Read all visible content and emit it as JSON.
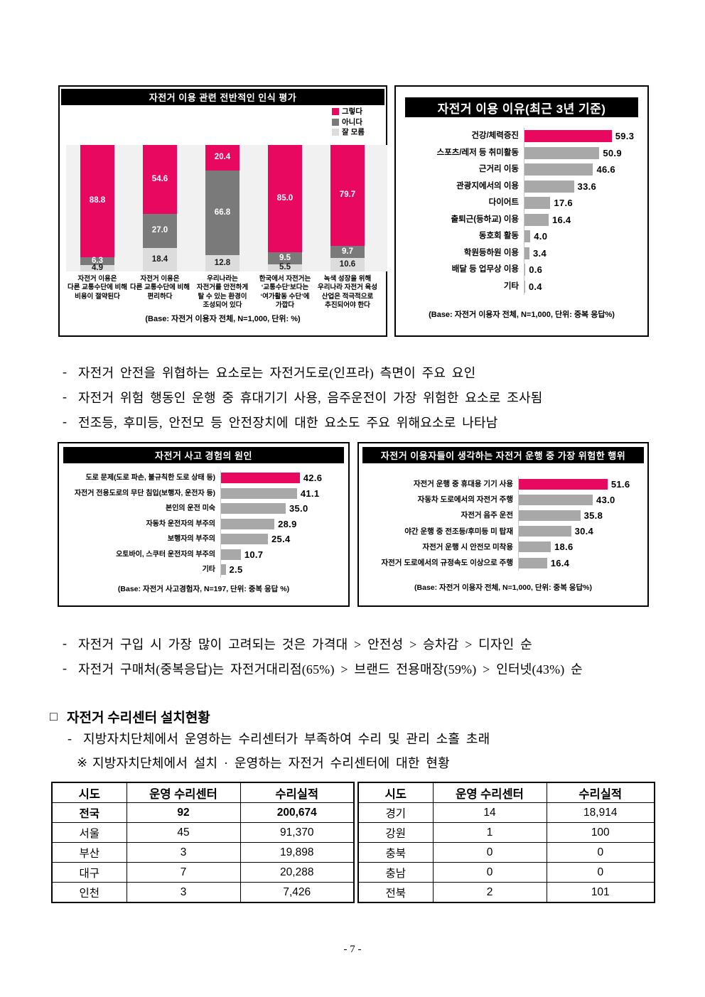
{
  "page": {
    "number": "- 7 -"
  },
  "colors": {
    "accent": "#e8085f",
    "bar_gray": "#a8a8a8",
    "dark_gray": "#7a7a7a",
    "light_gray": "#dcdcdc",
    "plot_bg": "#f1f1f1"
  },
  "chart_data": [
    {
      "id": "perception",
      "type": "stacked-bar",
      "title": "자전거 이용 관련 전반적인 인식 평가",
      "base": "(Base: 자전거 이용자 전체, N=1,000, 단위: %)",
      "legend": [
        "그렇다",
        "아니다",
        "잘 모름"
      ],
      "ylim": [
        0,
        100
      ],
      "categories": [
        "자전거 이용은\n다른 교통수단에 비해\n비용이 절약된다",
        "자전거 이용은\n다른 교통수단에 비해\n편리하다",
        "우리나라는\n자전거를 안전하게\n탈 수 있는 환경이\n조성되어 있다",
        "한국에서 자전거는\n‘교통수단’보다는\n‘여가활동 수단’에\n가깝다",
        "녹색 성장을 위해\n우리나라 자전거 육성\n산업은 적극적으로\n추진되어야 한다"
      ],
      "series": [
        {
          "name": "그렇다",
          "values": [
            88.8,
            54.6,
            20.4,
            85.0,
            79.7
          ]
        },
        {
          "name": "아니다",
          "values": [
            6.3,
            27.0,
            66.8,
            9.5,
            9.7
          ]
        },
        {
          "name": "잘 모름",
          "values": [
            4.9,
            18.4,
            12.8,
            5.5,
            10.6
          ]
        }
      ]
    },
    {
      "id": "reasons",
      "type": "bar",
      "orientation": "horizontal",
      "title": "자전거 이용 이유(최근 3년 기준)",
      "base": "(Base: 자전거 이용자 전체, N=1,000, 단위: 중복 응답%)",
      "highlight_index": 0,
      "categories": [
        "건강/체력증진",
        "스포츠/레저 등 취미활동",
        "근거리 이동",
        "관광지에서의 이용",
        "다이어트",
        "출퇴근(등하교) 이용",
        "동호회 활동",
        "학원등하원 이용",
        "배달 등 업무상 이용",
        "기타"
      ],
      "values": [
        59.3,
        50.9,
        46.6,
        33.6,
        17.6,
        16.4,
        4.0,
        3.4,
        0.6,
        0.4
      ]
    },
    {
      "id": "accident",
      "type": "bar",
      "orientation": "horizontal",
      "title": "자전거 사고 경험의 원인",
      "base": "(Base: 자전거 사고경험자, N=197, 단위: 중복 응답 %)",
      "highlight_index": 0,
      "categories": [
        "도로 문제(도로 파손, 불규칙한 도로 상태 등)",
        "자전거 전용도로의 무단 침입(보행자, 운전자 등)",
        "본인의 운전 미숙",
        "자동차 운전자의 부주의",
        "보행자의 부주의",
        "오토바이, 스쿠터 운전자의 부주의",
        "기타"
      ],
      "values": [
        42.6,
        41.1,
        35.0,
        28.9,
        25.4,
        10.7,
        2.5
      ]
    },
    {
      "id": "danger",
      "type": "bar",
      "orientation": "horizontal",
      "title": "자전거 이용자들이 생각하는 자전거 운행 중 가장 위험한 행위",
      "base": "(Base: 자전거 이용자 전체, N=1,000, 단위: 중복 응답%)",
      "highlight_index": 0,
      "categories": [
        "자전거 운행 중 휴대용 기기 사용",
        "자동차 도로에서의 자전거 주행",
        "자전거 음주 운전",
        "야간 운행 중 전조등/후미등 미 탑재",
        "자전거 운행 시 안전모 미착용",
        "자전거 도로에서의 규정속도 이상으로 주행"
      ],
      "values": [
        51.6,
        43.0,
        35.8,
        30.4,
        18.6,
        16.4
      ]
    }
  ],
  "bullets_top": [
    {
      "marker": "-",
      "text": "자전거 안전을 위협하는 요소로는 자전거도로(인프라) 측면이 주요 요인"
    },
    {
      "marker": "-",
      "text": "자전거 위험 행동인 운행 중 휴대기기 사용, 음주운전이 가장 위험한 요소로 조사됨"
    },
    {
      "marker": "-",
      "text": "전조등, 후미등, 안전모 등 안전장치에 대한 요소도 주요 위해요소로 나타남"
    }
  ],
  "bullets_mid": [
    {
      "marker": "-",
      "text": "자전거 구입 시 가장 많이 고려되는 것은 가격대 > 안전성 > 승차감 > 디자인 순"
    },
    {
      "marker": "-",
      "text": "자전거 구매처(중복응답)는 자전거대리점(65%) > 브랜드 전용매장(59%) > 인터넷(43%) 순"
    }
  ],
  "section": {
    "marker": "□",
    "title": "자전거 수리센터 설치현황"
  },
  "section_bullets": [
    {
      "marker": "-",
      "text": "지방자치단체에서 운영하는 수리센터가 부족하여 수리 및 관리 소홀 초래"
    },
    {
      "marker": "※",
      "text": "지방자치단체에서 설치 · 운영하는 자전거 수리센터에 대한 현황"
    }
  ],
  "repair_table": {
    "headers": [
      "시도",
      "운영 수리센터",
      "수리실적"
    ],
    "left_rows": [
      [
        "전국",
        "92",
        "200,674"
      ],
      [
        "서울",
        "45",
        "91,370"
      ],
      [
        "부산",
        "3",
        "19,898"
      ],
      [
        "대구",
        "7",
        "20,288"
      ],
      [
        "인천",
        "3",
        "7,426"
      ]
    ],
    "right_rows": [
      [
        "경기",
        "14",
        "18,914"
      ],
      [
        "강원",
        "1",
        "100"
      ],
      [
        "충북",
        "0",
        "0"
      ],
      [
        "충남",
        "0",
        "0"
      ],
      [
        "전북",
        "2",
        "101"
      ]
    ],
    "bold_row_label": "전국"
  }
}
